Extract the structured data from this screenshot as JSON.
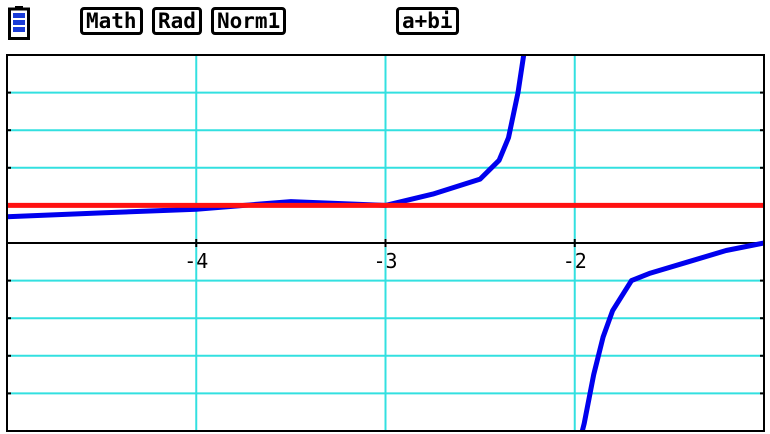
{
  "status_bar": {
    "battery_icon": "battery-icon",
    "modes": {
      "input": "Math",
      "angle": "Rad",
      "display": "Norm1",
      "complex": "a+bi"
    }
  },
  "chart_data": {
    "type": "line",
    "title": "",
    "xlabel": "",
    "ylabel": "",
    "xlim": [
      -5.0,
      -1.0
    ],
    "ylim": [
      -5.0,
      5.0
    ],
    "x_ticks": [
      -4,
      -3,
      -2
    ],
    "x_tick_labels": [
      "-4",
      "-3",
      "-2"
    ],
    "grid": true,
    "series": [
      {
        "color": "#0000ee",
        "x": [
          -5.0,
          -4.5,
          -4.0,
          -3.5,
          -3.0,
          -2.75,
          -2.5,
          -2.4,
          -2.35,
          -2.3,
          -2.27,
          -2.25,
          -1.97,
          -1.95,
          -1.9,
          -1.85,
          -1.8,
          -1.7,
          -1.6,
          -1.4,
          -1.2,
          -1.0
        ],
        "y": [
          0.7,
          0.8,
          0.9,
          1.1,
          1.0,
          1.3,
          1.7,
          2.2,
          2.8,
          4.0,
          5.0,
          5.5,
          -5.2,
          -4.8,
          -3.5,
          -2.5,
          -1.8,
          -1.0,
          -0.8,
          -0.5,
          -0.2,
          0.0
        ]
      },
      {
        "color": "#ff1111",
        "x": [
          -5.0,
          -1.0
        ],
        "y": [
          1.0,
          1.0
        ]
      }
    ],
    "colors": {
      "grid": "#33e0e0",
      "axis": "#000000",
      "frame": "#000000"
    }
  }
}
